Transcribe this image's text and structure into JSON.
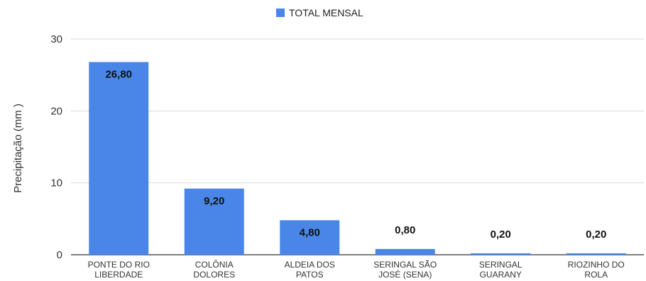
{
  "chart_data": {
    "type": "bar",
    "legend": {
      "position": "top",
      "label": "TOTAL MENSAL"
    },
    "ylabel": "Precipitação (mm )",
    "xlabel": "",
    "ylim": [
      0,
      30
    ],
    "yticks": [
      "0",
      "10",
      "20",
      "30"
    ],
    "grid": true,
    "categories": [
      [
        "PONTE DO RIO",
        "LIBERDADE"
      ],
      [
        "COLÔNIA",
        "DOLORES"
      ],
      [
        "ALDEIA DOS",
        "PATOS"
      ],
      [
        "SERINGAL SÃO",
        "JOSÉ (SENA)"
      ],
      [
        "SERINGAL",
        "GUARANY"
      ],
      [
        "RIOZINHO DO",
        "ROLA"
      ]
    ],
    "series": [
      {
        "name": "TOTAL MENSAL",
        "color": "#4a86e8",
        "values": [
          26.8,
          9.2,
          4.8,
          0.8,
          0.2,
          0.2
        ],
        "data_labels": [
          "26,80",
          "9,20",
          "4,80",
          "0,80",
          "0,20",
          "0,20"
        ]
      }
    ]
  }
}
